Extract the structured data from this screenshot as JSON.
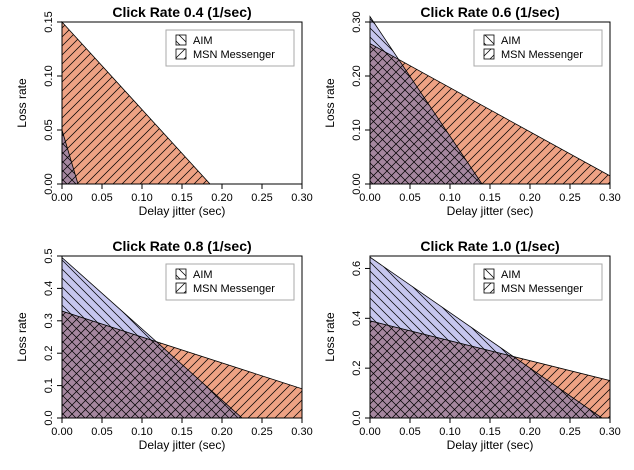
{
  "colors": {
    "aim_fill": "#c6c6ee",
    "msn_fill": "#eea284",
    "overlap_fill": "#a5879f",
    "frame": "#000000",
    "legend_border": "#aaaaaa"
  },
  "chart_data": [
    {
      "type": "area",
      "title": "Click Rate 0.4 (1/sec)",
      "xlabel": "Delay jitter (sec)",
      "ylabel": "Loss rate",
      "xlim": [
        0,
        0.3
      ],
      "ylim": [
        0,
        0.15
      ],
      "xticks": [
        "0.00",
        "0.05",
        "0.10",
        "0.15",
        "0.20",
        "0.25",
        "0.30"
      ],
      "yticks": [
        "0.00",
        "0.05",
        "0.10",
        "0.15"
      ],
      "yticks_values": [
        0,
        0.05,
        0.1,
        0.15
      ],
      "legend": [
        "AIM",
        "MSN Messenger"
      ],
      "legend_position": "top-right",
      "grid": false,
      "series": [
        {
          "name": "AIM",
          "polygon": [
            [
              0,
              0
            ],
            [
              0,
              0.05
            ],
            [
              0.02,
              0
            ]
          ]
        },
        {
          "name": "MSN Messenger",
          "polygon": [
            [
              0,
              0
            ],
            [
              0,
              0.15
            ],
            [
              0.185,
              0
            ]
          ]
        }
      ]
    },
    {
      "type": "area",
      "title": "Click Rate 0.6 (1/sec)",
      "xlabel": "Delay jitter (sec)",
      "ylabel": "Loss rate",
      "xlim": [
        0,
        0.3
      ],
      "ylim": [
        0,
        0.3
      ],
      "xticks": [
        "0.00",
        "0.05",
        "0.10",
        "0.15",
        "0.20",
        "0.25",
        "0.30"
      ],
      "yticks": [
        "0.00",
        "0.10",
        "0.20",
        "0.30"
      ],
      "yticks_values": [
        0,
        0.1,
        0.2,
        0.3
      ],
      "legend": [
        "AIM",
        "MSN Messenger"
      ],
      "legend_position": "top-right",
      "grid": false,
      "series": [
        {
          "name": "AIM",
          "polygon": [
            [
              0,
              0
            ],
            [
              0,
              0.31
            ],
            [
              0.14,
              0
            ]
          ]
        },
        {
          "name": "MSN Messenger",
          "polygon": [
            [
              0,
              0
            ],
            [
              0,
              0.26
            ],
            [
              0.3,
              0.015
            ],
            [
              0.3,
              0
            ]
          ]
        }
      ]
    },
    {
      "type": "area",
      "title": "Click Rate 0.8 (1/sec)",
      "xlabel": "Delay jitter (sec)",
      "ylabel": "Loss rate",
      "xlim": [
        0,
        0.3
      ],
      "ylim": [
        0,
        0.5
      ],
      "xticks": [
        "0.00",
        "0.05",
        "0.10",
        "0.15",
        "0.20",
        "0.25",
        "0.30"
      ],
      "yticks": [
        "0.0",
        "0.1",
        "0.2",
        "0.3",
        "0.4",
        "0.5"
      ],
      "yticks_values": [
        0,
        0.1,
        0.2,
        0.3,
        0.4,
        0.5
      ],
      "legend": [
        "AIM",
        "MSN Messenger"
      ],
      "legend_position": "top-right",
      "grid": false,
      "series": [
        {
          "name": "AIM",
          "polygon": [
            [
              0,
              0
            ],
            [
              0,
              0.495
            ],
            [
              0.225,
              0
            ]
          ]
        },
        {
          "name": "MSN Messenger",
          "polygon": [
            [
              0,
              0
            ],
            [
              0,
              0.33
            ],
            [
              0.3,
              0.09
            ],
            [
              0.3,
              0
            ]
          ]
        }
      ]
    },
    {
      "type": "area",
      "title": "Click Rate 1.0 (1/sec)",
      "xlabel": "Delay jitter (sec)",
      "ylabel": "Loss rate",
      "xlim": [
        0,
        0.3
      ],
      "ylim": [
        0,
        0.65
      ],
      "xticks": [
        "0.00",
        "0.05",
        "0.10",
        "0.15",
        "0.20",
        "0.25",
        "0.30"
      ],
      "yticks": [
        "0.0",
        "0.2",
        "0.4",
        "0.6"
      ],
      "yticks_values": [
        0,
        0.2,
        0.4,
        0.6
      ],
      "legend": [
        "AIM",
        "MSN Messenger"
      ],
      "legend_position": "top-right",
      "grid": false,
      "series": [
        {
          "name": "AIM",
          "polygon": [
            [
              0,
              0
            ],
            [
              0,
              0.645
            ],
            [
              0.29,
              0
            ]
          ]
        },
        {
          "name": "MSN Messenger",
          "polygon": [
            [
              0,
              0
            ],
            [
              0,
              0.39
            ],
            [
              0.3,
              0.15
            ],
            [
              0.3,
              0
            ]
          ]
        }
      ]
    }
  ]
}
